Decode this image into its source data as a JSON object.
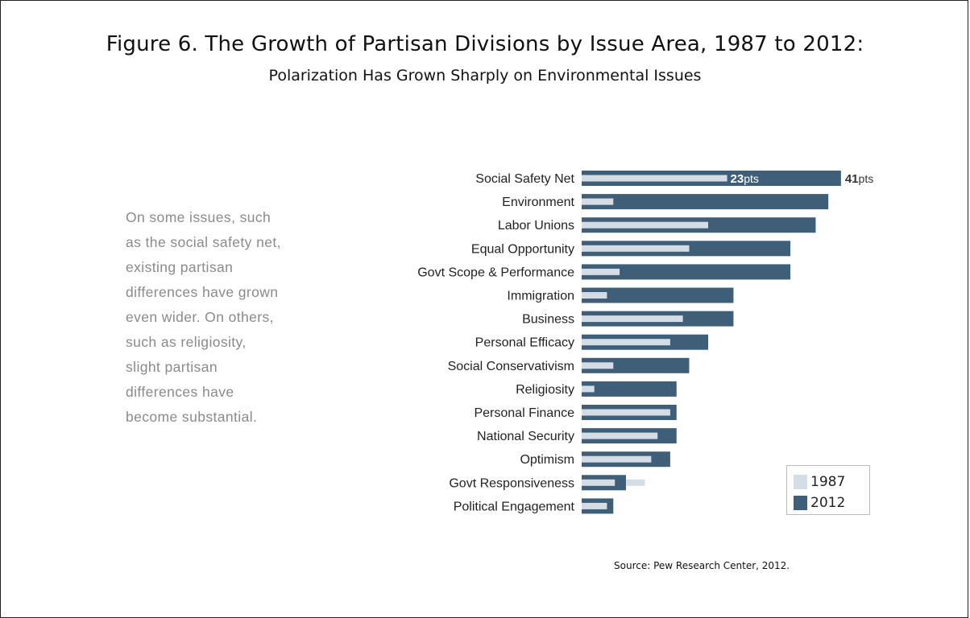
{
  "title": "Figure 6. The Growth of Partisan Divisions by Issue Area, 1987 to 2012:",
  "subtitle": "Polarization Has Grown Sharply on Environmental Issues",
  "note_lines": [
    "On some issues, such",
    "as the social safety net,",
    "existing partisan",
    "differences have grown",
    "even wider. On others,",
    "such as religiosity,",
    "slight partisan",
    "differences have",
    "become substantial."
  ],
  "source": "Source: Pew Research Center, 2012.",
  "colors": {
    "series_1987": "#d4dde6",
    "series_2012": "#3f5f78"
  },
  "chart_data": {
    "type": "bar",
    "orientation": "horizontal",
    "title": "",
    "xlabel": "",
    "ylabel": "",
    "xlim": [
      0,
      45
    ],
    "grid": false,
    "legend_position": "bottom-right",
    "categories": [
      "Social Safety Net",
      "Environment",
      "Labor Unions",
      "Equal Opportunity",
      "Govt Scope & Performance",
      "Immigration",
      "Business",
      "Personal Efficacy",
      "Social Conservativism",
      "Religiosity",
      "Personal Finance",
      "National Security",
      "Optimism",
      "Govt Responsiveness",
      "Political Engagement"
    ],
    "series": [
      {
        "name": "1987",
        "values": [
          23,
          5,
          20,
          17,
          6,
          4,
          16,
          14,
          5,
          2,
          14,
          12,
          11,
          10,
          4
        ]
      },
      {
        "name": "2012",
        "values": [
          41,
          39,
          37,
          33,
          33,
          24,
          24,
          20,
          17,
          15,
          15,
          15,
          14,
          7,
          5
        ]
      }
    ],
    "data_labels": [
      {
        "category": "Social Safety Net",
        "series": "1987",
        "number": "23",
        "unit": "pts"
      },
      {
        "category": "Social Safety Net",
        "series": "2012",
        "number": "41",
        "unit": "pts"
      }
    ]
  }
}
